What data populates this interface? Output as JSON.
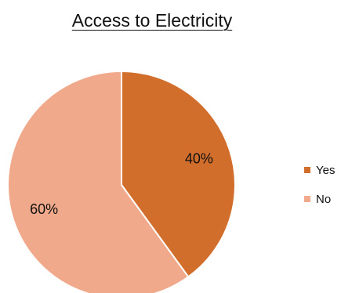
{
  "chart_data": {
    "type": "pie",
    "title": "Access to Electricity",
    "categories": [
      "Yes",
      "No"
    ],
    "values": [
      40,
      60
    ],
    "labels": [
      "40%",
      "60%"
    ],
    "colors": [
      "#D26E2C",
      "#F0A98A"
    ],
    "legend_position": "right"
  }
}
